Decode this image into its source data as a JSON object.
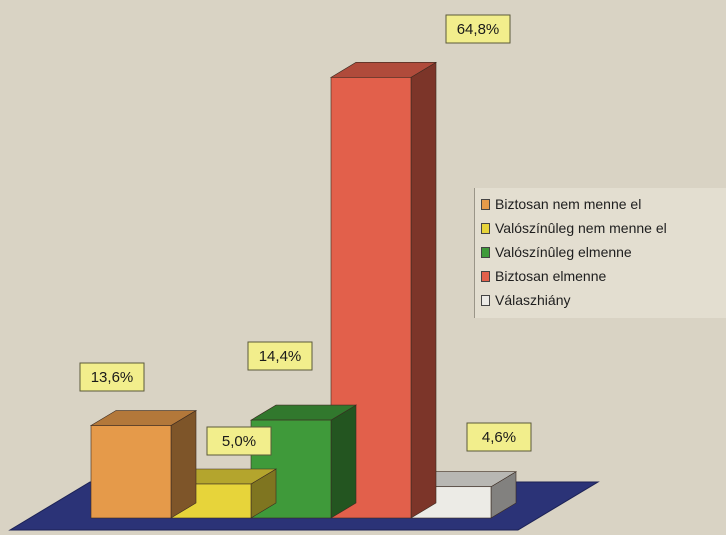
{
  "chart_data": {
    "type": "bar",
    "title": "",
    "xlabel": "",
    "ylabel": "",
    "ylim": [
      0,
      70
    ],
    "grid": false,
    "legend_position": "right",
    "categories": [
      "Biztosan nem menne el",
      "Valószínûleg nem menne el",
      "Valószínûleg elmenne",
      "Biztosan elmenne",
      "Válaszhiány"
    ],
    "values": [
      13.6,
      5.0,
      14.4,
      64.8,
      4.6
    ],
    "data_labels": [
      "13,6%",
      "5,0%",
      "14,4%",
      "64,8%",
      "4,6%"
    ],
    "colors": [
      "#e59a4a",
      "#e7d43a",
      "#3f9a3a",
      "#e2604b",
      "#ecebe6"
    ]
  }
}
